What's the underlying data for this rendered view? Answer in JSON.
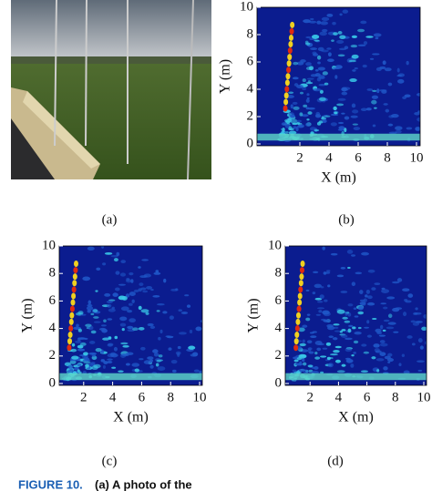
{
  "panels": [
    {
      "label": "(a)"
    },
    {
      "label": "(b)",
      "xlabel": "X (m)",
      "ylabel": "Y (m)",
      "xticks": [
        2,
        4,
        6,
        8,
        10
      ],
      "yticks": [
        0,
        2,
        4,
        6,
        8,
        10
      ]
    },
    {
      "label": "(c)",
      "xlabel": "X (m)",
      "ylabel": "Y (m)",
      "xticks": [
        2,
        4,
        6,
        8,
        10
      ],
      "yticks": [
        0,
        2,
        4,
        6,
        8,
        10
      ]
    },
    {
      "label": "(d)",
      "xlabel": "X (m)",
      "ylabel": "Y (m)",
      "xticks": [
        2,
        4,
        6,
        8,
        10
      ],
      "yticks": [
        0,
        2,
        4,
        6,
        8,
        10
      ]
    }
  ],
  "caption": {
    "figure": "FIGURE 10.",
    "text": "(a) A photo of the"
  }
}
